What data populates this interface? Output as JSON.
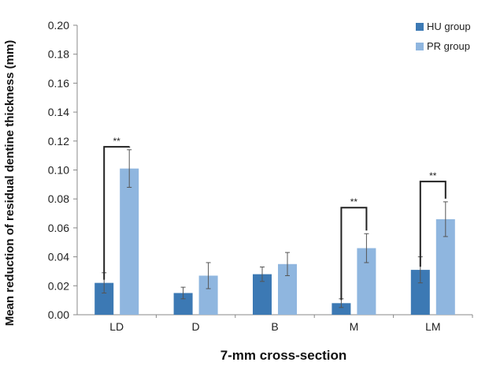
{
  "chart_data": {
    "type": "bar",
    "title": "",
    "xlabel": "7-mm cross-section",
    "ylabel": "Mean reduction of residual dentine thickness (mm)",
    "categories": [
      "LD",
      "D",
      "B",
      "M",
      "LM"
    ],
    "ylim": [
      0,
      0.2
    ],
    "yticks": [
      "0.00",
      "0.02",
      "0.04",
      "0.06",
      "0.08",
      "0.10",
      "0.12",
      "0.14",
      "0.16",
      "0.18",
      "0.20"
    ],
    "legend_position": "top-right",
    "grid": false,
    "series": [
      {
        "name": "HU group",
        "color": "#3c79b4",
        "values": [
          0.022,
          0.015,
          0.028,
          0.008,
          0.031
        ],
        "errors": [
          0.007,
          0.004,
          0.005,
          0.003,
          0.009
        ]
      },
      {
        "name": "PR group",
        "color": "#8fb6df",
        "values": [
          0.101,
          0.027,
          0.035,
          0.046,
          0.066
        ],
        "errors": [
          0.013,
          0.009,
          0.008,
          0.01,
          0.012
        ]
      }
    ],
    "annotations": [
      {
        "category": "LD",
        "text": "**",
        "y": 0.116
      },
      {
        "category": "M",
        "text": "**",
        "y": 0.074
      },
      {
        "category": "LM",
        "text": "**",
        "y": 0.092
      }
    ]
  }
}
